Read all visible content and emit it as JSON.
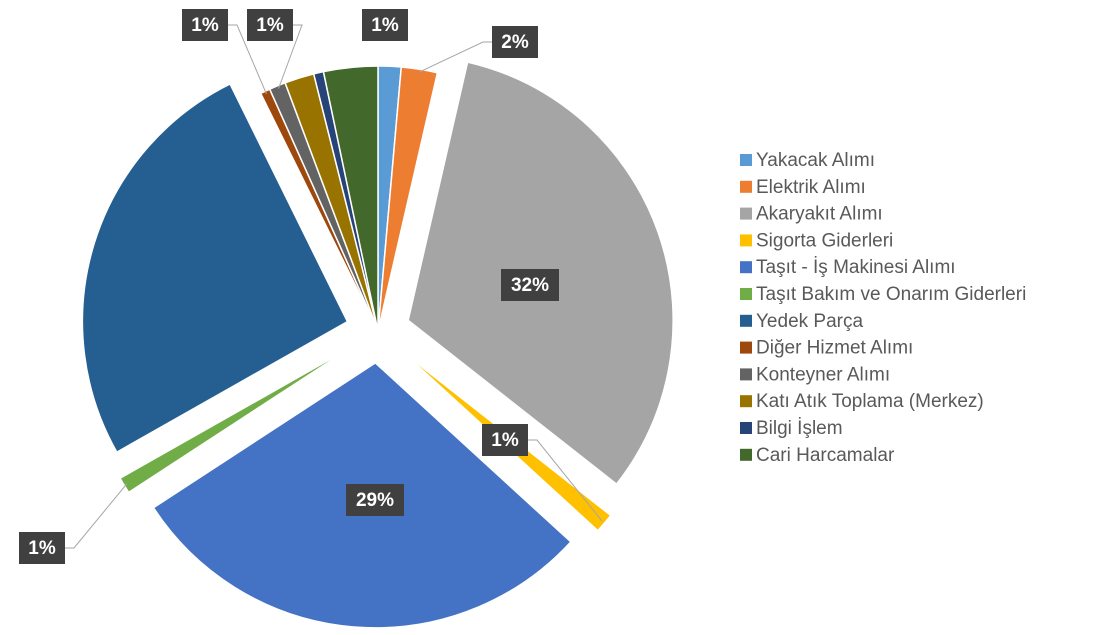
{
  "chart_data": {
    "type": "pie",
    "categories": [
      "Yakacak Alımı",
      "Elektrik Alımı",
      "Akaryakıt Alımı",
      "Sigorta Giderleri",
      "Taşıt - İş Makinesi Alımı",
      "Taşıt Bakım ve Onarım Giderleri",
      "Yedek Parça",
      "Diğer Hizmet Alımı",
      "Konteyner Alımı",
      "Katı Atık Toplama (Merkez)",
      "Bilgi İşlem",
      "Cari Harcamalar"
    ],
    "values": [
      1.4,
      2.2,
      32,
      1.2,
      29,
      1.0,
      25.9,
      0.6,
      1.0,
      1.8,
      0.6,
      3.3
    ],
    "value_labels": [
      "1%",
      "2%",
      "32%",
      "1%",
      "29%",
      "1%",
      null,
      "1%",
      "1%",
      null,
      null,
      null
    ],
    "colors": [
      "#5b9bd5",
      "#ed7d31",
      "#a5a5a5",
      "#ffc000",
      "#4472c4",
      "#70ad47",
      "#255e91",
      "#9e480e",
      "#636363",
      "#997300",
      "#264478",
      "#43682b"
    ],
    "legend": "right"
  }
}
